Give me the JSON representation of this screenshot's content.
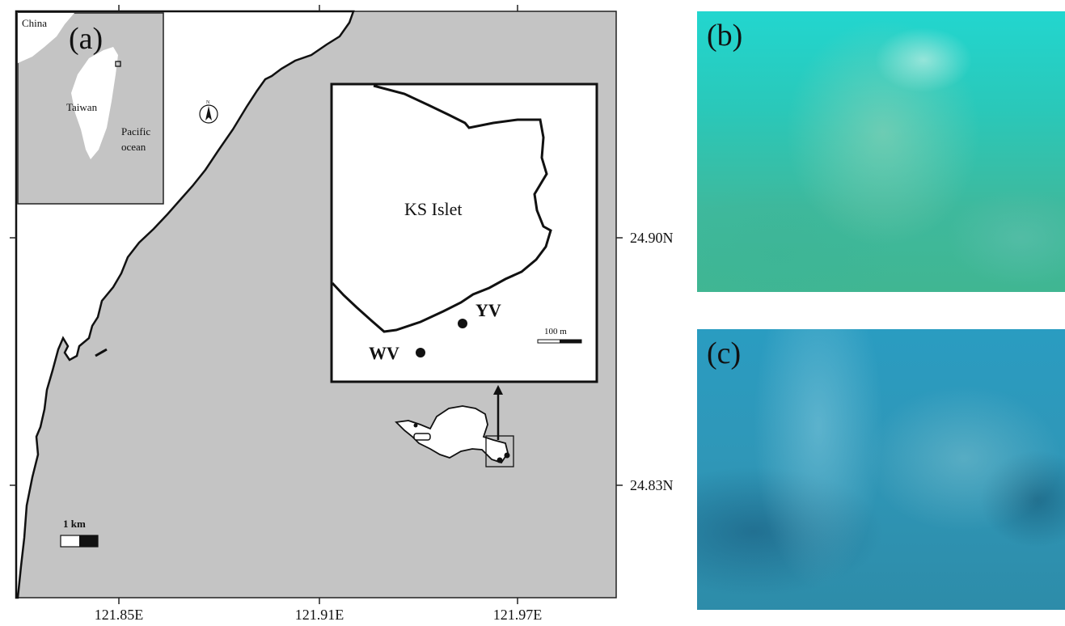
{
  "panels": {
    "a": {
      "label": "(a)",
      "inset_overview": {
        "labels": [
          "China",
          "Taiwan",
          "Pacific",
          "ocean"
        ]
      },
      "north_arrow_label": "N",
      "zoom_inset": {
        "island_label": "KS Islet",
        "sites": [
          "YV",
          "WV"
        ],
        "scale_bar_label": "100 m"
      },
      "scale_bar_label": "1 km",
      "x_axis_labels": [
        "121.85E",
        "121.91E",
        "121.97E"
      ],
      "y_axis_labels": [
        "24.90N",
        "24.83N"
      ]
    },
    "b": {
      "label": "(b)"
    },
    "c": {
      "label": "(c)"
    }
  },
  "colors": {
    "sea": "#c4c4c4",
    "land": "#ffffff",
    "coastline": "#111111"
  }
}
